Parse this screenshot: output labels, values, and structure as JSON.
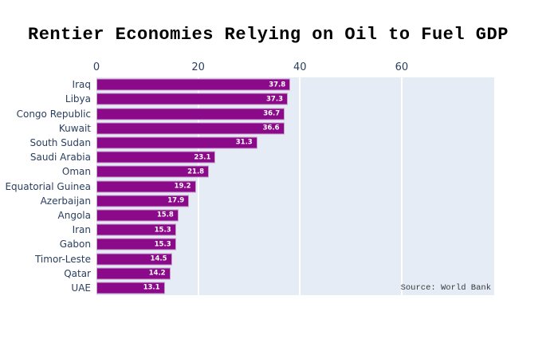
{
  "title": "Rentier Economies Relying on Oil to Fuel GDP",
  "source_note": "Source: World Bank",
  "colors": {
    "bar_fill": "#8a0a8a",
    "bar_border": "#c9a0c9",
    "plot_background": "#E5ECF6",
    "gridline": "#ffffff",
    "axis_text": "#2a3f5f",
    "title_text": "#000000",
    "value_label_text": "#ffffff"
  },
  "chart_data": {
    "type": "bar",
    "orientation": "horizontal",
    "title": "Rentier Economies Relying on Oil to Fuel GDP",
    "xlabel": "",
    "ylabel": "",
    "categories": [
      "Iraq",
      "Libya",
      "Congo Republic",
      "Kuwait",
      "South Sudan",
      "Saudi Arabia",
      "Oman",
      "Equatorial Guinea",
      "Azerbaijan",
      "Angola",
      "Iran",
      "Gabon",
      "Timor-Leste",
      "Qatar",
      "UAE"
    ],
    "values": [
      37.8,
      37.3,
      36.7,
      36.6,
      31.3,
      23.1,
      21.8,
      19.2,
      17.9,
      15.8,
      15.3,
      15.3,
      14.5,
      14.2,
      13.1
    ],
    "value_labels": [
      "37.8",
      "37.3",
      "36.7",
      "36.6",
      "31.3",
      "23.1",
      "21.8",
      "19.2",
      "17.9",
      "15.8",
      "15.3",
      "15.3",
      "14.5",
      "14.2",
      "13.1"
    ],
    "xlim": [
      0,
      78.2
    ],
    "xticks": [
      0,
      20,
      40,
      60
    ],
    "xtick_labels": [
      "0",
      "20",
      "40",
      "60"
    ],
    "xaxis_side": "top",
    "grid": true,
    "legend": false,
    "annotations": [
      "Source: World Bank"
    ]
  }
}
